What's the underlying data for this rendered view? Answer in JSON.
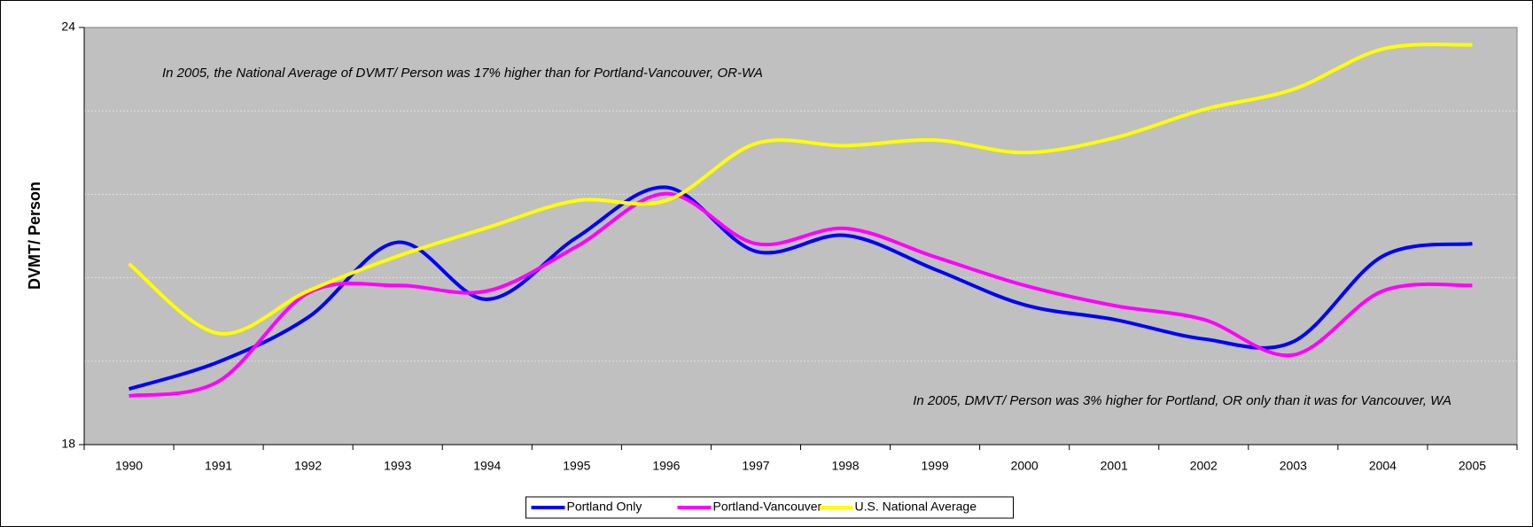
{
  "chart_data": {
    "type": "line",
    "y_label": "DVMT/ Person",
    "annotations": [
      "In 2005, the National Average of DVMT/ Person was 17% higher than for Portland-Vancouver, OR-WA",
      "In 2005, DMVT/ Person was 3% higher for Portland, OR only than it was for Vancouver, WA"
    ],
    "categories": [
      "1990",
      "1991",
      "1992",
      "1993",
      "1994",
      "1995",
      "1996",
      "1997",
      "1998",
      "1999",
      "2000",
      "2001",
      "2002",
      "2003",
      "2004",
      "2005"
    ],
    "series": [
      {
        "name": "Portland Only",
        "color": "#0000ff",
        "values": [
          18.8,
          19.19,
          19.83,
          20.91,
          20.09,
          20.98,
          21.7,
          20.78,
          21.01,
          20.52,
          20.01,
          19.8,
          19.52,
          19.48,
          20.71,
          20.89
        ]
      },
      {
        "name": "Portland-Vancouver",
        "color": "#ff00ff",
        "values": [
          18.7,
          18.91,
          20.18,
          20.29,
          20.21,
          20.85,
          21.61,
          20.89,
          21.11,
          20.7,
          20.29,
          20.0,
          19.8,
          19.29,
          20.21,
          20.29
        ]
      },
      {
        "name": "U.S. National Average",
        "color": "#ffff00",
        "values": [
          20.6,
          19.6,
          20.21,
          20.71,
          21.12,
          21.51,
          21.51,
          22.33,
          22.3,
          22.38,
          22.2,
          22.41,
          22.82,
          23.11,
          23.69,
          23.75
        ]
      }
    ],
    "ylim": [
      18,
      24
    ],
    "yticks": [
      18,
      24
    ],
    "ygrid": [
      19.2,
      20.4,
      21.6,
      22.8
    ],
    "grid": true,
    "legend": "bottom",
    "smooth": true
  }
}
